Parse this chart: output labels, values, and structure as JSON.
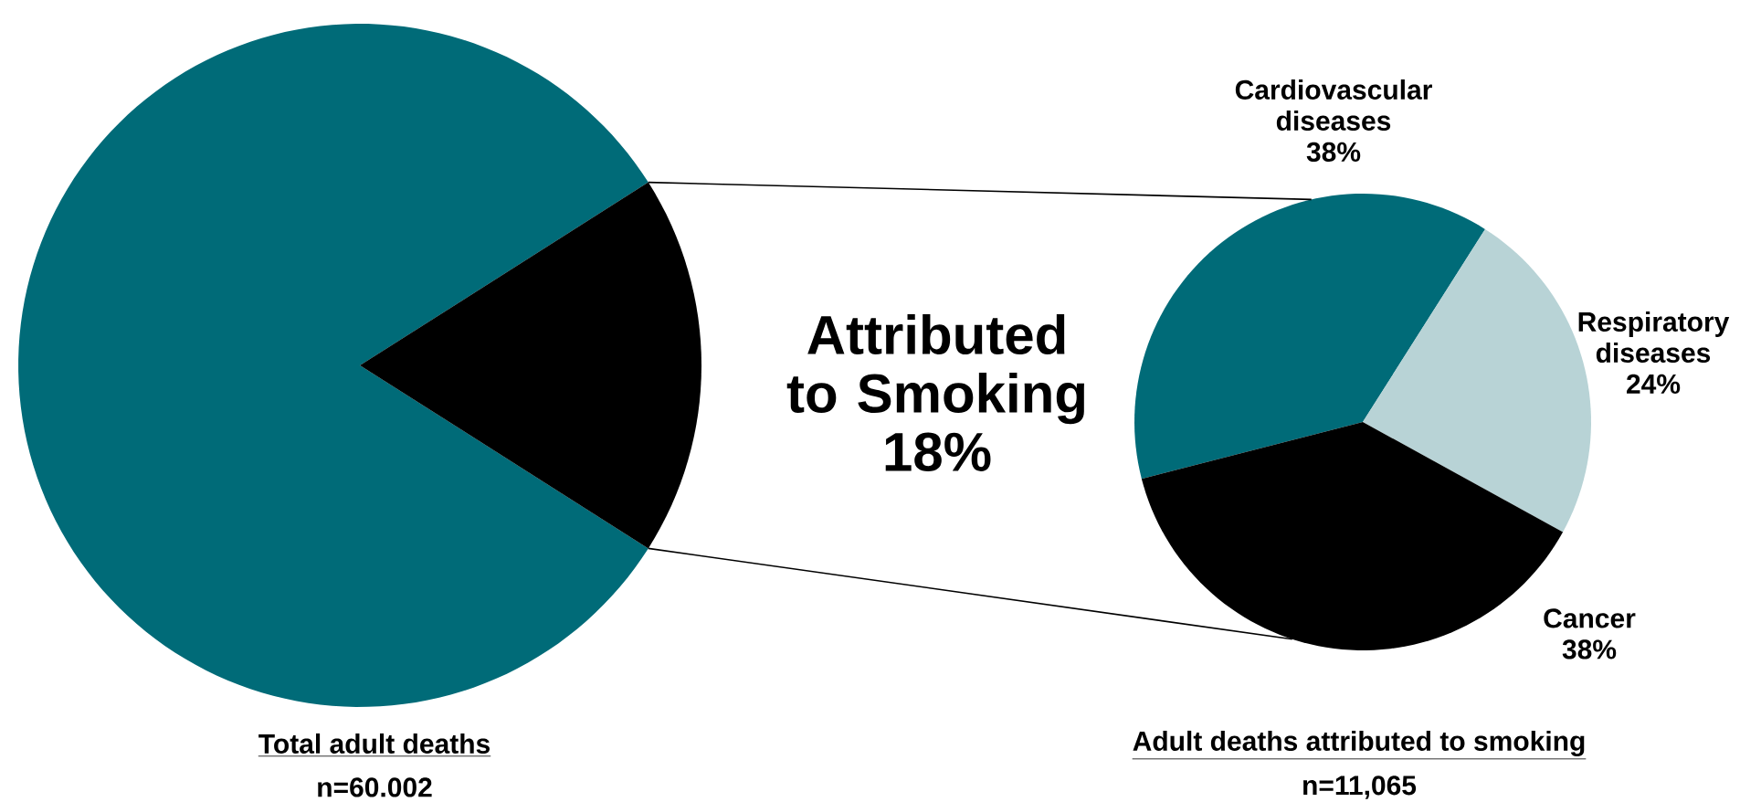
{
  "chart_data": [
    {
      "type": "pie",
      "categories": [
        null,
        "Attributed to Smoking"
      ],
      "values": [
        82,
        18
      ],
      "colors": [
        "#006b78",
        "#000000"
      ],
      "value_labels": [
        null,
        "18%"
      ],
      "xlabel": "Total adult deaths",
      "annotations": [
        "n=60.002"
      ]
    },
    {
      "type": "pie",
      "categories": [
        "Cardiovascular diseases",
        "Respiratory diseases",
        "Cancer"
      ],
      "values": [
        38,
        24,
        38
      ],
      "colors": [
        "#006b78",
        "#b8d3d6",
        "#000000"
      ],
      "value_labels": [
        "38%",
        "24%",
        "38%"
      ],
      "xlabel": "Adult deaths attributed to smoking",
      "annotations": [
        "n=11,065"
      ]
    }
  ]
}
